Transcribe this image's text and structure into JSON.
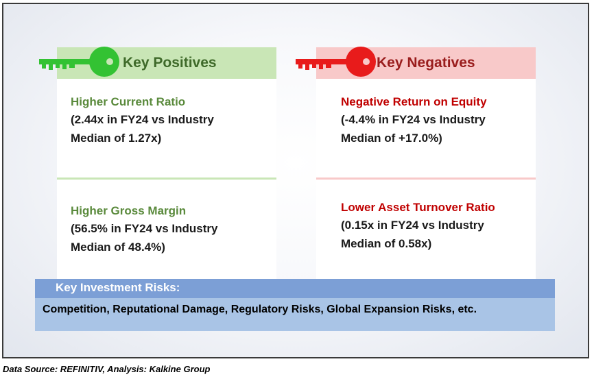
{
  "positives": {
    "header": "Key Positives",
    "items": [
      {
        "title": "Higher Current Ratio",
        "desc": "(2.44x in FY24 vs Industry\nMedian of 1.27x)"
      },
      {
        "title": "Higher Gross Margin",
        "desc": "(56.5% in FY24 vs Industry\nMedian of 48.4%)"
      }
    ]
  },
  "negatives": {
    "header": "Key Negatives",
    "items": [
      {
        "title": "Negative Return on Equity",
        "desc": "(-4.4% in FY24 vs Industry\nMedian of +17.0%)"
      },
      {
        "title": "Lower Asset Turnover Ratio",
        "desc": "(0.15x in FY24 vs Industry\nMedian of 0.58x)"
      }
    ]
  },
  "risks": {
    "title": "Key Investment Risks:",
    "text": "Competition, Reputational Damage, Regulatory Risks, Global Expansion Risks, etc."
  },
  "footer": {
    "source": "Data Source: REFINITIV, Analysis: Kalkine Group"
  },
  "colors": {
    "positive_accent": "#5a8a3c",
    "negative_accent": "#c00000",
    "positive_key": "#33c233",
    "negative_key": "#e81b1b",
    "risk_header": "#7c9fd6",
    "risk_body": "#a9c4e6"
  }
}
